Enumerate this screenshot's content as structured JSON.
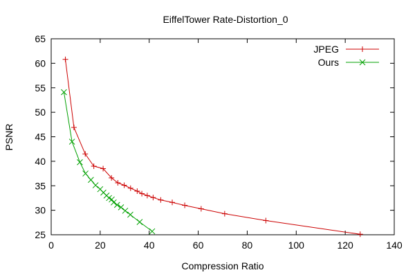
{
  "chart_data": {
    "type": "line",
    "title": "EiffelTower Rate-Distortion_0",
    "xlabel": "Compression Ratio",
    "ylabel": "PSNR",
    "xlim": [
      0,
      140
    ],
    "ylim": [
      25,
      65
    ],
    "xticks": [
      0,
      20,
      40,
      60,
      80,
      100,
      120,
      140
    ],
    "yticks": [
      25,
      30,
      35,
      40,
      45,
      50,
      55,
      60,
      65
    ],
    "grid": false,
    "legend_position": "top-right",
    "series": [
      {
        "name": "JPEG",
        "color": "#cc0000",
        "marker": "plus",
        "x": [
          5.8,
          9.3,
          13.9,
          17.4,
          21.2,
          24.6,
          27.2,
          29.8,
          32.4,
          35.1,
          37.0,
          39.2,
          41.6,
          44.7,
          49.4,
          54.5,
          61.2,
          70.8,
          87.6,
          126.1
        ],
        "y": [
          60.8,
          46.9,
          41.5,
          39.0,
          38.5,
          36.6,
          35.6,
          35.1,
          34.5,
          33.9,
          33.4,
          33.0,
          32.6,
          32.1,
          31.6,
          31.0,
          30.3,
          29.3,
          27.9,
          25.1
        ]
      },
      {
        "name": "Ours",
        "color": "#00a000",
        "marker": "x",
        "x": [
          5.2,
          8.5,
          11.7,
          14.0,
          16.2,
          18.1,
          20.0,
          21.3,
          22.6,
          23.6,
          24.7,
          25.5,
          26.9,
          28.5,
          30.2,
          32.3,
          36.1,
          41.2
        ],
        "y": [
          54.1,
          44.0,
          39.8,
          37.5,
          36.2,
          35.1,
          34.3,
          33.6,
          33.0,
          32.5,
          32.2,
          31.6,
          31.1,
          30.6,
          29.9,
          29.1,
          27.6,
          25.7
        ]
      }
    ]
  }
}
